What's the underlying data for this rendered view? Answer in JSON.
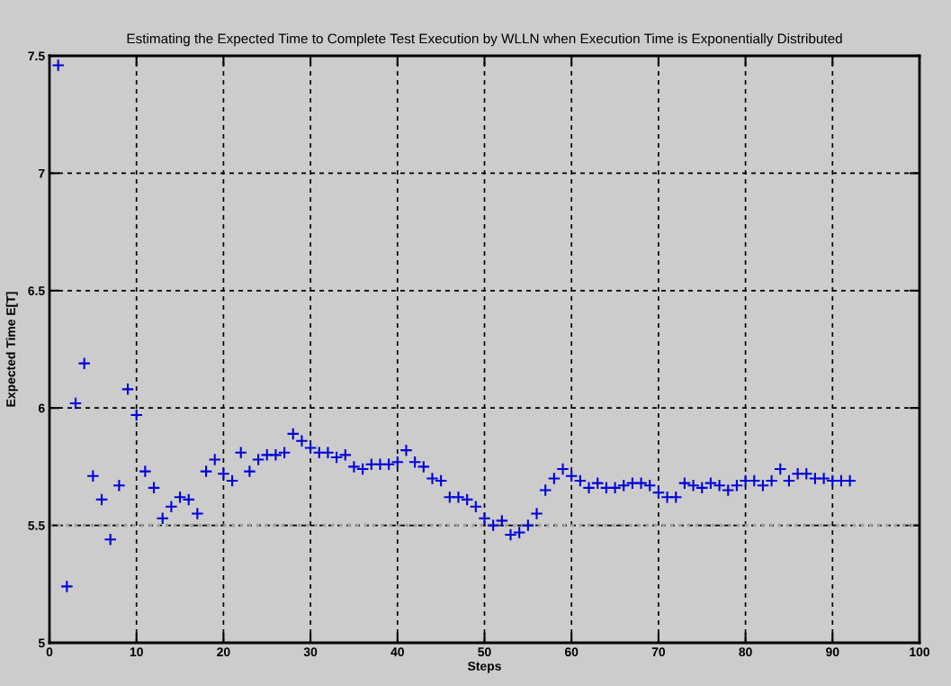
{
  "chart_data": {
    "type": "scatter",
    "title": "Estimating the Expected Time to Complete Test Execution by WLLN when Execution Time is Exponentially Distributed",
    "xlabel": "Steps",
    "ylabel": "Expected Time E[T]",
    "x": [
      1,
      2,
      3,
      4,
      5,
      6,
      7,
      8,
      9,
      10,
      11,
      12,
      13,
      14,
      15,
      16,
      17,
      18,
      19,
      20,
      21,
      22,
      23,
      24,
      25,
      26,
      27,
      28,
      29,
      30,
      31,
      32,
      33,
      34,
      35,
      36,
      37,
      38,
      39,
      40,
      41,
      42,
      43,
      44,
      45,
      46,
      47,
      48,
      49,
      50,
      51,
      52,
      53,
      54,
      55,
      56,
      57,
      58,
      59,
      60,
      61,
      62,
      63,
      64,
      65,
      66,
      67,
      68,
      69,
      70,
      71,
      72,
      73,
      74,
      75,
      76,
      77,
      78,
      79,
      80,
      81,
      82,
      83,
      84,
      85,
      86,
      87,
      88,
      89,
      90,
      91,
      92
    ],
    "series": [
      {
        "color": "#0000dd",
        "values": [
          7.46,
          5.24,
          6.02,
          6.19,
          5.71,
          5.61,
          5.44,
          5.67,
          6.08,
          5.97,
          5.73,
          5.66,
          5.53,
          5.58,
          5.62,
          5.61,
          5.55,
          5.73,
          5.78,
          5.72,
          5.69,
          5.81,
          5.73,
          5.78,
          5.8,
          5.8,
          5.81,
          5.89,
          5.86,
          5.83,
          5.81,
          5.81,
          5.79,
          5.8,
          5.75,
          5.74,
          5.76,
          5.76,
          5.76,
          5.77,
          5.82,
          5.77,
          5.75,
          5.7,
          5.69,
          5.62,
          5.62,
          5.61,
          5.58,
          5.53,
          5.5,
          5.52,
          5.46,
          5.47,
          5.5,
          5.55,
          5.65,
          5.7,
          5.74,
          5.71,
          5.69,
          5.66,
          5.68,
          5.66,
          5.66,
          5.67,
          5.68,
          5.68,
          5.67,
          5.64,
          5.62,
          5.62,
          5.68,
          5.67,
          5.66,
          5.68,
          5.67,
          5.65,
          5.67,
          5.69,
          5.69,
          5.67,
          5.69,
          5.74,
          5.69,
          5.72,
          5.72,
          5.7,
          5.7,
          5.69,
          5.69,
          5.69
        ]
      }
    ],
    "xlim": [
      0,
      100
    ],
    "xticks": [
      0,
      10,
      20,
      30,
      40,
      50,
      60,
      70,
      80,
      90,
      100
    ],
    "ylim": [
      5,
      7.5
    ],
    "yticks": [
      5,
      5.5,
      6,
      6.5,
      7,
      7.5
    ],
    "grid": true,
    "marker": "cross",
    "ref_lines": [
      {
        "axis": "y",
        "value": 5.5,
        "color": "#a0a0a0",
        "line_style": "dotted"
      }
    ]
  }
}
